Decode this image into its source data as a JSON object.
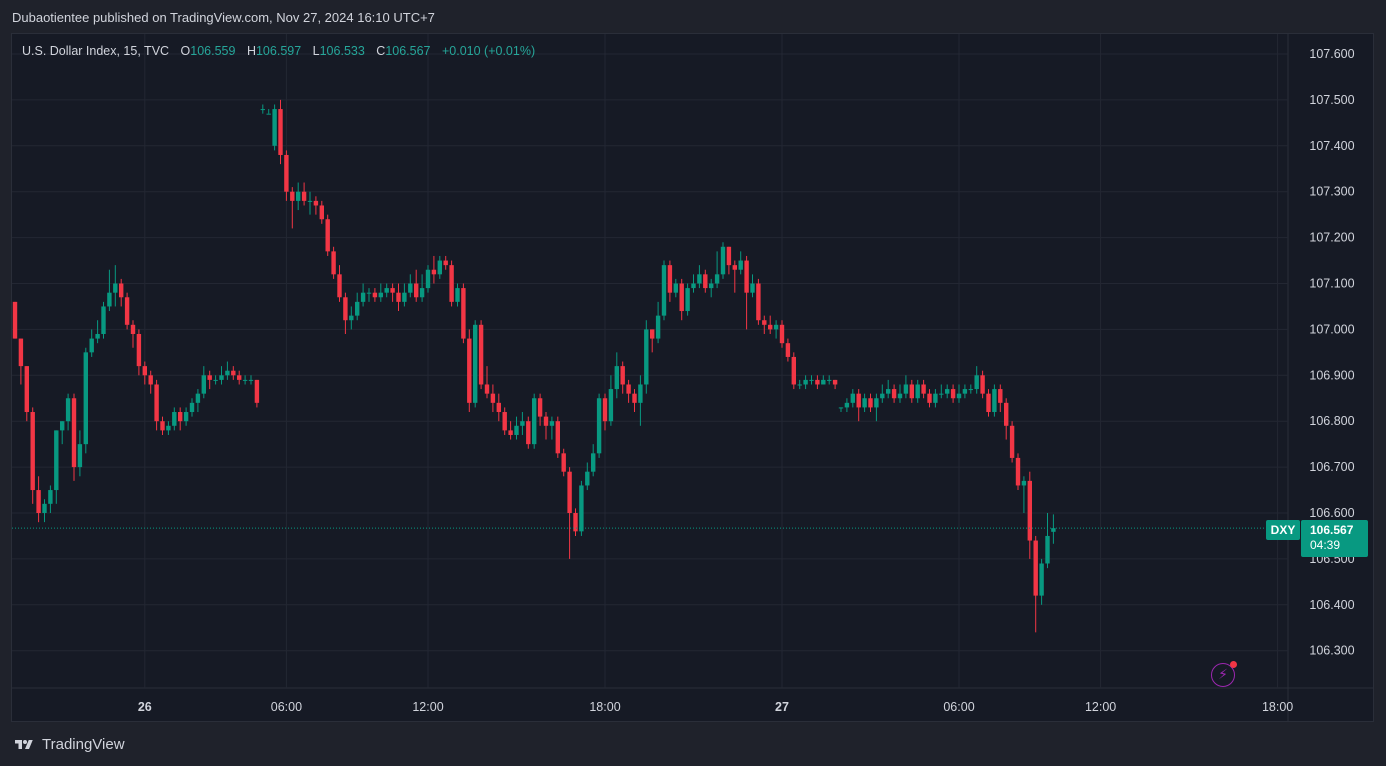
{
  "header": {
    "publish_text": "Dubaotientee published on TradingView.com, Nov 27, 2024 16:10 UTC+7"
  },
  "legend": {
    "title": "U.S. Dollar Index, 15, TVC",
    "o_label": "O",
    "o_value": "106.559",
    "h_label": "H",
    "h_value": "106.597",
    "l_label": "L",
    "l_value": "106.533",
    "c_label": "C",
    "c_value": "106.567",
    "change": "+0.010 (+0.01%)"
  },
  "last_price": {
    "symbol": "DXY",
    "price": "106.567",
    "countdown": "04:39"
  },
  "brand": {
    "name": "TradingView"
  },
  "colors": {
    "background": "#161a25",
    "up": "#089981",
    "down": "#f23645",
    "grid": "#232733",
    "axis_text": "#d1d4dc"
  },
  "icons": {
    "flash": "lightning-icon"
  },
  "chart_data": {
    "type": "candlestick",
    "symbol": "U.S. Dollar Index",
    "interval": "15",
    "source": "TVC",
    "ylim": [
      106.2,
      107.65
    ],
    "y_ticks": [
      "107.600",
      "107.500",
      "107.400",
      "107.300",
      "107.200",
      "107.100",
      "107.000",
      "106.900",
      "106.800",
      "106.700",
      "106.600",
      "106.500",
      "106.400",
      "106.300"
    ],
    "x_ticks": [
      {
        "label": "26",
        "bar": 22,
        "bold": true
      },
      {
        "label": "06:00",
        "bar": 46,
        "bold": false
      },
      {
        "label": "12:00",
        "bar": 70,
        "bold": false
      },
      {
        "label": "18:00",
        "bar": 100,
        "bold": false
      },
      {
        "label": "27",
        "bar": 130,
        "bold": true
      },
      {
        "label": "06:00",
        "bar": 160,
        "bold": false
      },
      {
        "label": "12:00",
        "bar": 184,
        "bold": false
      },
      {
        "label": "18:00",
        "bar": 214,
        "bold": false
      }
    ],
    "last_price": 106.567,
    "grid": true,
    "candles": [
      [
        107.06,
        106.98,
        107.06,
        106.98
      ],
      [
        106.98,
        106.92,
        106.98,
        106.88
      ],
      [
        106.92,
        106.82,
        106.92,
        106.8
      ],
      [
        106.82,
        106.65,
        106.83,
        106.62
      ],
      [
        106.65,
        106.6,
        106.68,
        106.58
      ],
      [
        106.6,
        106.62,
        106.63,
        106.58
      ],
      [
        106.62,
        106.65,
        106.66,
        106.6
      ],
      [
        106.65,
        106.78,
        106.78,
        106.62
      ],
      [
        106.78,
        106.8,
        106.8,
        106.75
      ],
      [
        106.8,
        106.85,
        106.86,
        106.78
      ],
      [
        106.85,
        106.7,
        106.86,
        106.67
      ],
      [
        106.7,
        106.75,
        106.78,
        106.68
      ],
      [
        106.75,
        106.95,
        106.96,
        106.73
      ],
      [
        106.95,
        106.98,
        107.0,
        106.94
      ],
      [
        106.98,
        106.99,
        107.02,
        106.97
      ],
      [
        106.99,
        107.05,
        107.06,
        106.98
      ],
      [
        107.05,
        107.08,
        107.13,
        107.04
      ],
      [
        107.08,
        107.1,
        107.14,
        107.05
      ],
      [
        107.1,
        107.07,
        107.11,
        107.05
      ],
      [
        107.07,
        107.01,
        107.08,
        107.0
      ],
      [
        107.01,
        106.99,
        107.02,
        106.96
      ],
      [
        106.99,
        106.92,
        107.0,
        106.9
      ],
      [
        106.92,
        106.9,
        106.93,
        106.88
      ],
      [
        106.9,
        106.88,
        106.91,
        106.86
      ],
      [
        106.88,
        106.8,
        106.89,
        106.78
      ],
      [
        106.8,
        106.78,
        106.81,
        106.77
      ],
      [
        106.78,
        106.79,
        106.8,
        106.77
      ],
      [
        106.79,
        106.82,
        106.83,
        106.78
      ],
      [
        106.82,
        106.8,
        106.83,
        106.78
      ],
      [
        106.8,
        106.82,
        106.83,
        106.79
      ],
      [
        106.82,
        106.84,
        106.85,
        106.81
      ],
      [
        106.84,
        106.86,
        106.87,
        106.82
      ],
      [
        106.86,
        106.9,
        106.92,
        106.85
      ],
      [
        106.9,
        106.89,
        106.91,
        106.87
      ],
      [
        106.89,
        106.89,
        106.9,
        106.88
      ],
      [
        106.89,
        106.9,
        106.92,
        106.88
      ],
      [
        106.9,
        106.91,
        106.93,
        106.89
      ],
      [
        106.91,
        106.9,
        106.92,
        106.89
      ],
      [
        106.9,
        106.89,
        106.91,
        106.88
      ],
      [
        106.89,
        106.89,
        106.9,
        106.88
      ],
      [
        106.89,
        106.89,
        106.9,
        106.88
      ],
      [
        106.89,
        106.84,
        106.89,
        106.83
      ],
      [
        107.48,
        107.48,
        107.49,
        107.47
      ],
      [
        107.47,
        107.47,
        107.48,
        107.47
      ],
      [
        107.4,
        107.48,
        107.49,
        107.39
      ],
      [
        107.48,
        107.38,
        107.5,
        107.36
      ],
      [
        107.38,
        107.3,
        107.39,
        107.28
      ],
      [
        107.3,
        107.28,
        107.31,
        107.22
      ],
      [
        107.28,
        107.3,
        107.32,
        107.26
      ],
      [
        107.3,
        107.28,
        107.32,
        107.27
      ],
      [
        107.28,
        107.28,
        107.3,
        107.25
      ],
      [
        107.28,
        107.27,
        107.29,
        107.25
      ],
      [
        107.27,
        107.24,
        107.28,
        107.23
      ],
      [
        107.24,
        107.17,
        107.25,
        107.16
      ],
      [
        107.17,
        107.12,
        107.18,
        107.11
      ],
      [
        107.12,
        107.07,
        107.14,
        107.06
      ],
      [
        107.07,
        107.02,
        107.08,
        106.99
      ],
      [
        107.02,
        107.03,
        107.05,
        107.0
      ],
      [
        107.03,
        107.06,
        107.08,
        107.02
      ],
      [
        107.06,
        107.08,
        107.1,
        107.05
      ],
      [
        107.08,
        107.08,
        107.09,
        107.06
      ],
      [
        107.08,
        107.07,
        107.09,
        107.06
      ],
      [
        107.07,
        107.08,
        107.1,
        107.06
      ],
      [
        107.08,
        107.09,
        107.1,
        107.07
      ],
      [
        107.09,
        107.08,
        107.1,
        107.06
      ],
      [
        107.08,
        107.06,
        107.1,
        107.04
      ],
      [
        107.06,
        107.08,
        107.1,
        107.05
      ],
      [
        107.08,
        107.1,
        107.12,
        107.07
      ],
      [
        107.1,
        107.07,
        107.13,
        107.06
      ],
      [
        107.07,
        107.09,
        107.12,
        107.06
      ],
      [
        107.09,
        107.13,
        107.14,
        107.08
      ],
      [
        107.13,
        107.12,
        107.16,
        107.1
      ],
      [
        107.12,
        107.15,
        107.16,
        107.11
      ],
      [
        107.15,
        107.14,
        107.16,
        107.13
      ],
      [
        107.14,
        107.06,
        107.15,
        107.05
      ],
      [
        107.06,
        107.09,
        107.1,
        107.05
      ],
      [
        107.09,
        106.98,
        107.1,
        106.97
      ],
      [
        106.98,
        106.84,
        107.0,
        106.82
      ],
      [
        106.84,
        107.01,
        107.02,
        106.83
      ],
      [
        107.01,
        106.88,
        107.02,
        106.87
      ],
      [
        106.88,
        106.86,
        106.92,
        106.85
      ],
      [
        106.86,
        106.84,
        106.88,
        106.82
      ],
      [
        106.84,
        106.82,
        106.86,
        106.8
      ],
      [
        106.82,
        106.78,
        106.83,
        106.77
      ],
      [
        106.78,
        106.77,
        106.8,
        106.76
      ],
      [
        106.77,
        106.79,
        106.81,
        106.76
      ],
      [
        106.79,
        106.8,
        106.82,
        106.77
      ],
      [
        106.8,
        106.75,
        106.81,
        106.74
      ],
      [
        106.75,
        106.85,
        106.86,
        106.74
      ],
      [
        106.85,
        106.81,
        106.86,
        106.79
      ],
      [
        106.81,
        106.79,
        106.82,
        106.76
      ],
      [
        106.79,
        106.8,
        106.81,
        106.76
      ],
      [
        106.8,
        106.73,
        106.81,
        106.72
      ],
      [
        106.73,
        106.69,
        106.74,
        106.68
      ],
      [
        106.69,
        106.6,
        106.7,
        106.5
      ],
      [
        106.6,
        106.56,
        106.61,
        106.55
      ],
      [
        106.56,
        106.66,
        106.67,
        106.55
      ],
      [
        106.66,
        106.69,
        106.71,
        106.65
      ],
      [
        106.69,
        106.73,
        106.75,
        106.68
      ],
      [
        106.73,
        106.85,
        106.86,
        106.72
      ],
      [
        106.85,
        106.8,
        106.86,
        106.78
      ],
      [
        106.8,
        106.87,
        106.9,
        106.79
      ],
      [
        106.87,
        106.92,
        106.95,
        106.85
      ],
      [
        106.92,
        106.88,
        106.93,
        106.86
      ],
      [
        106.88,
        106.86,
        106.89,
        106.84
      ],
      [
        106.86,
        106.84,
        106.87,
        106.82
      ],
      [
        106.84,
        106.88,
        106.9,
        106.79
      ],
      [
        106.88,
        107.0,
        107.02,
        106.86
      ],
      [
        107.0,
        106.98,
        107.0,
        106.95
      ],
      [
        106.98,
        107.03,
        107.06,
        106.97
      ],
      [
        107.03,
        107.14,
        107.15,
        107.02
      ],
      [
        107.14,
        107.08,
        107.15,
        107.06
      ],
      [
        107.08,
        107.1,
        107.11,
        107.07
      ],
      [
        107.1,
        107.04,
        107.11,
        107.02
      ],
      [
        107.04,
        107.09,
        107.1,
        107.03
      ],
      [
        107.09,
        107.1,
        107.12,
        107.08
      ],
      [
        107.1,
        107.12,
        107.14,
        107.09
      ],
      [
        107.12,
        107.09,
        107.13,
        107.08
      ],
      [
        107.09,
        107.1,
        107.11,
        107.07
      ],
      [
        107.1,
        107.12,
        107.17,
        107.09
      ],
      [
        107.12,
        107.18,
        107.19,
        107.11
      ],
      [
        107.18,
        107.14,
        107.18,
        107.12
      ],
      [
        107.14,
        107.13,
        107.15,
        107.08
      ],
      [
        107.13,
        107.15,
        107.17,
        107.12
      ],
      [
        107.15,
        107.08,
        107.16,
        107.0
      ],
      [
        107.08,
        107.1,
        107.12,
        107.07
      ],
      [
        107.1,
        107.02,
        107.11,
        107.01
      ],
      [
        107.02,
        107.01,
        107.03,
        106.99
      ],
      [
        107.01,
        107.0,
        107.03,
        106.99
      ],
      [
        107.0,
        107.01,
        107.02,
        106.98
      ],
      [
        107.01,
        106.97,
        107.02,
        106.96
      ],
      [
        106.97,
        106.94,
        106.98,
        106.93
      ],
      [
        106.94,
        106.88,
        106.95,
        106.87
      ],
      [
        106.88,
        106.88,
        106.89,
        106.87
      ],
      [
        106.88,
        106.89,
        106.9,
        106.87
      ],
      [
        106.89,
        106.89,
        106.9,
        106.88
      ],
      [
        106.89,
        106.88,
        106.9,
        106.87
      ],
      [
        106.88,
        106.89,
        106.9,
        106.88
      ],
      [
        106.89,
        106.89,
        106.9,
        106.88
      ],
      [
        106.89,
        106.88,
        106.89,
        106.87
      ],
      [
        106.83,
        106.83,
        106.83,
        106.82
      ],
      [
        106.83,
        106.84,
        106.85,
        106.82
      ],
      [
        106.84,
        106.86,
        106.87,
        106.83
      ],
      [
        106.86,
        106.83,
        106.87,
        106.8
      ],
      [
        106.83,
        106.85,
        106.86,
        106.82
      ],
      [
        106.85,
        106.83,
        106.86,
        106.82
      ],
      [
        106.83,
        106.85,
        106.86,
        106.8
      ],
      [
        106.85,
        106.86,
        106.88,
        106.84
      ],
      [
        106.86,
        106.87,
        106.89,
        106.85
      ],
      [
        106.87,
        106.85,
        106.88,
        106.84
      ],
      [
        106.85,
        106.86,
        106.88,
        106.84
      ],
      [
        106.86,
        106.88,
        106.9,
        106.85
      ],
      [
        106.88,
        106.85,
        106.89,
        106.84
      ],
      [
        106.85,
        106.88,
        106.89,
        106.84
      ],
      [
        106.88,
        106.86,
        106.89,
        106.85
      ],
      [
        106.86,
        106.84,
        106.87,
        106.83
      ],
      [
        106.84,
        106.86,
        106.87,
        106.83
      ],
      [
        106.86,
        106.86,
        106.88,
        106.85
      ],
      [
        106.86,
        106.87,
        106.88,
        106.85
      ],
      [
        106.87,
        106.85,
        106.88,
        106.84
      ],
      [
        106.85,
        106.86,
        106.88,
        106.84
      ],
      [
        106.86,
        106.87,
        106.88,
        106.85
      ],
      [
        106.87,
        106.87,
        106.88,
        106.86
      ],
      [
        106.87,
        106.9,
        106.92,
        106.86
      ],
      [
        106.9,
        106.86,
        106.91,
        106.85
      ],
      [
        106.86,
        106.82,
        106.87,
        106.81
      ],
      [
        106.82,
        106.87,
        106.88,
        106.81
      ],
      [
        106.87,
        106.84,
        106.88,
        106.82
      ],
      [
        106.84,
        106.79,
        106.85,
        106.76
      ],
      [
        106.79,
        106.72,
        106.8,
        106.71
      ],
      [
        106.72,
        106.66,
        106.73,
        106.65
      ],
      [
        106.66,
        106.67,
        106.68,
        106.6
      ],
      [
        106.67,
        106.54,
        106.69,
        106.5
      ],
      [
        106.54,
        106.42,
        106.55,
        106.34
      ],
      [
        106.42,
        106.49,
        106.5,
        106.4
      ],
      [
        106.49,
        106.55,
        106.6,
        106.48
      ],
      [
        106.559,
        106.567,
        106.597,
        106.533
      ]
    ]
  }
}
